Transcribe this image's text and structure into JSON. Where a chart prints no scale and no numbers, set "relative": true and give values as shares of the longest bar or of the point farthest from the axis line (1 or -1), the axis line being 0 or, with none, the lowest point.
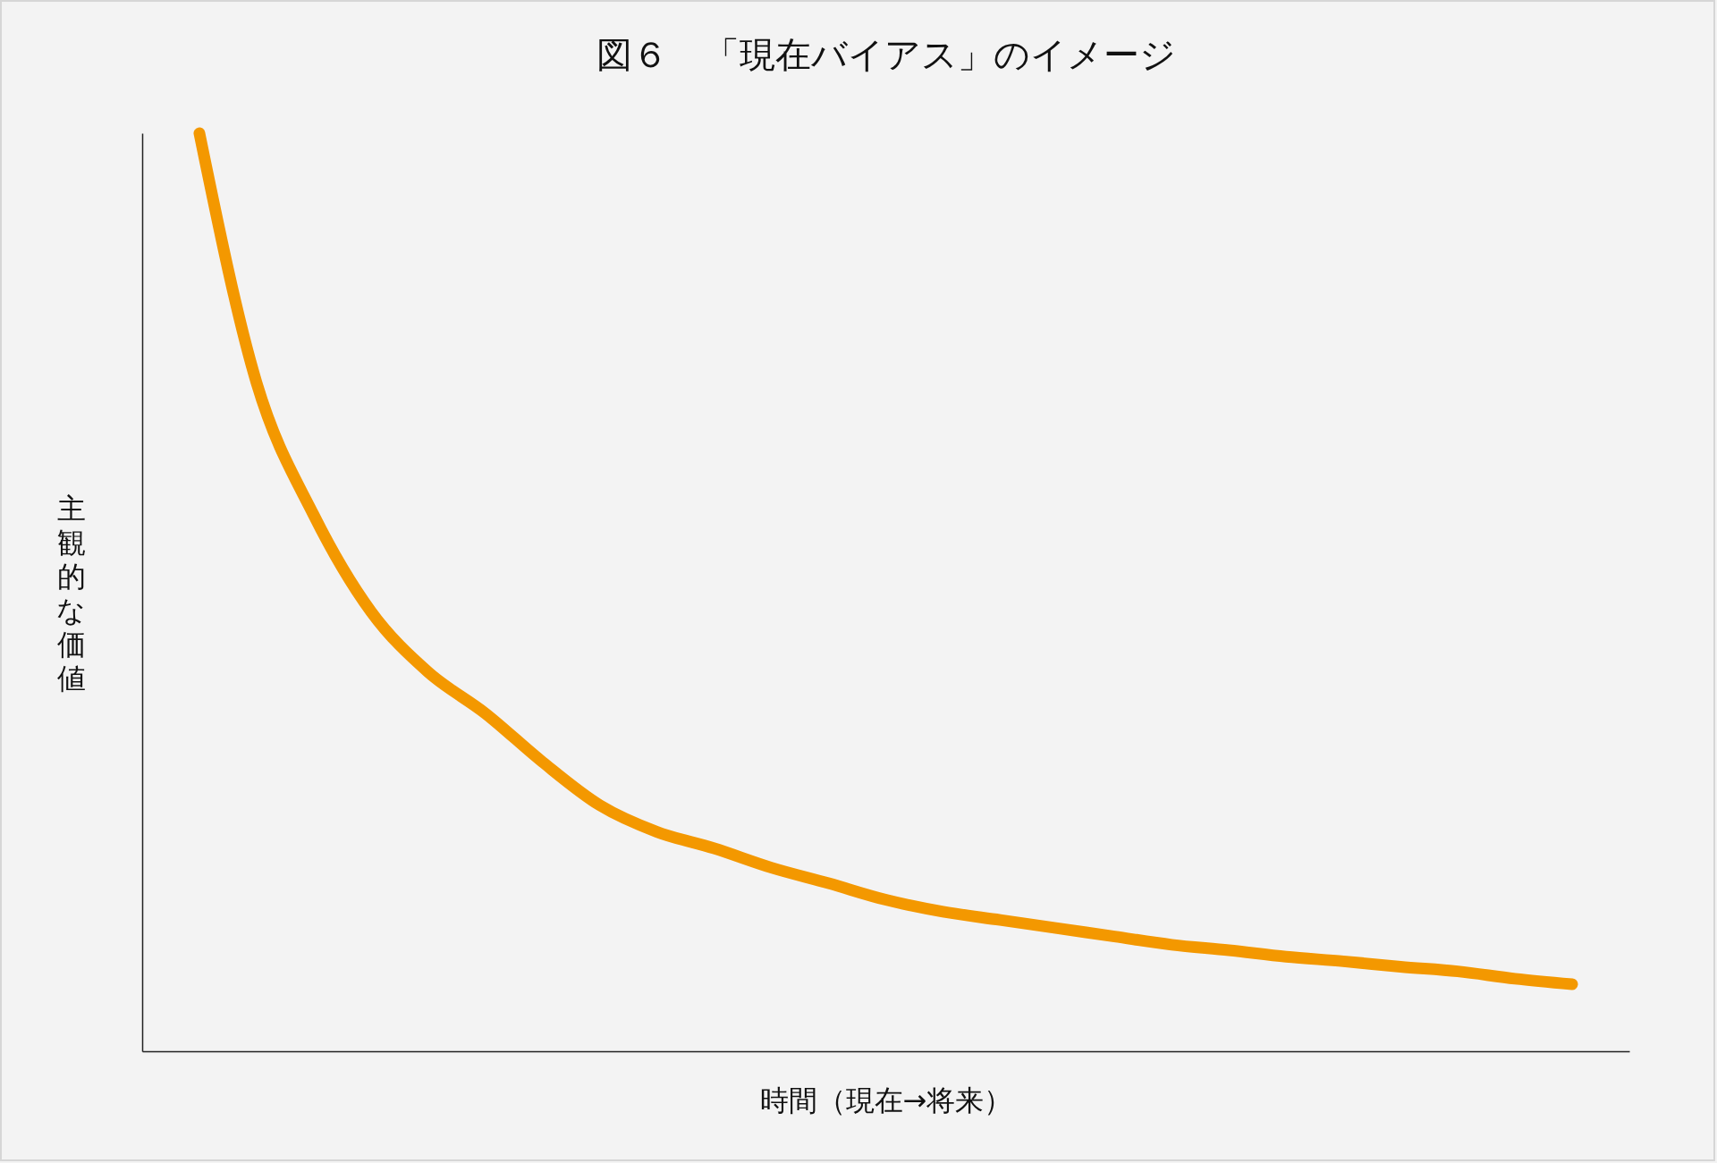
{
  "chart_data": {
    "type": "line",
    "title": "図６　「現在バイアス」のイメージ",
    "xlabel": "時間（現在→将来）",
    "ylabel": "主観的な価値",
    "relative": true,
    "grid": false,
    "legend": false,
    "line_style": "solid",
    "categories": [
      null,
      null,
      null,
      null,
      null,
      null,
      null,
      null,
      null,
      null,
      null,
      null,
      null,
      null,
      null,
      null,
      null,
      null,
      null,
      null,
      null,
      null,
      null,
      null,
      null
    ],
    "series": [
      {
        "color": "#f39800",
        "values": [
          1,
          0.728,
          0.584,
          0.479,
          0.413,
          0.368,
          0.315,
          0.268,
          0.239,
          0.221,
          0.2,
          0.183,
          0.165,
          0.152,
          0.143,
          0.134,
          0.125,
          0.116,
          0.11,
          0.103,
          0.098,
          0.092,
          0.087,
          0.079,
          0.073
        ]
      }
    ]
  }
}
